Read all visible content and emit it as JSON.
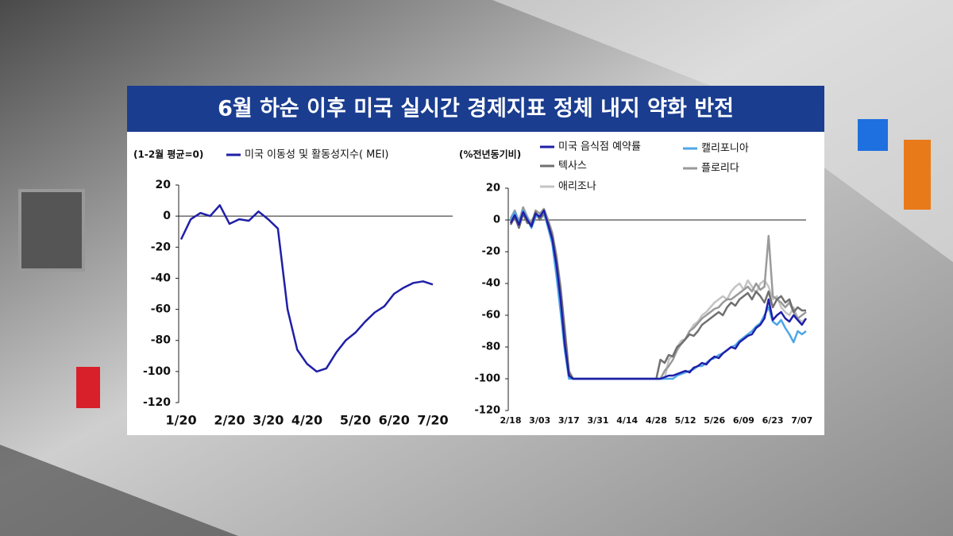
{
  "title": "6월 하순 이후 미국 실시간 경제지표 정체 내지 약화 반전",
  "chart_data": [
    {
      "type": "line",
      "y_label": "(1-2월 평균=0)",
      "categories": [
        "1/20",
        null,
        null,
        null,
        null,
        "2/20",
        null,
        null,
        null,
        "3/20",
        null,
        null,
        null,
        "4/20",
        null,
        null,
        null,
        null,
        "5/20",
        null,
        null,
        null,
        "6/20",
        null,
        null,
        null,
        "7/20"
      ],
      "series": [
        {
          "name": "미국 이동성 및 활동성지수( MEI)",
          "color": "#1f1fa8",
          "values": [
            -15,
            -2,
            2,
            0,
            7,
            -5,
            -2,
            -3,
            3,
            -2,
            -8,
            -60,
            -86,
            -95,
            -100,
            -98,
            -88,
            -80,
            -75,
            -68,
            -62,
            -58,
            -50,
            -46,
            -43,
            -42,
            -44
          ]
        }
      ],
      "ylim": [
        -120,
        20
      ],
      "yticks": [
        -120,
        -100,
        -80,
        -60,
        -40,
        -20,
        0,
        20
      ]
    },
    {
      "type": "line",
      "y_label": "(%전년동기비)",
      "categories": [
        "2/18",
        null,
        null,
        null,
        null,
        null,
        null,
        "3/03",
        null,
        null,
        null,
        null,
        null,
        null,
        "3/17",
        null,
        null,
        null,
        null,
        null,
        null,
        "3/31",
        null,
        null,
        null,
        null,
        null,
        null,
        "4/14",
        null,
        null,
        null,
        null,
        null,
        null,
        "4/28",
        null,
        null,
        null,
        null,
        null,
        null,
        "5/12",
        null,
        null,
        null,
        null,
        null,
        null,
        "5/26",
        null,
        null,
        null,
        null,
        null,
        null,
        "6/09",
        null,
        null,
        null,
        null,
        null,
        null,
        "6/23",
        null,
        null,
        null,
        null,
        null,
        null,
        "7/07",
        null
      ],
      "series": [
        {
          "name": "애리조나",
          "color": "#c4c4c4",
          "values": [
            -1,
            4,
            0,
            3,
            -1,
            0,
            3,
            1,
            3,
            -4,
            -12,
            -30,
            -48,
            -72,
            -97,
            -100,
            -100,
            -100,
            -100,
            -100,
            -100,
            -100,
            -100,
            -100,
            -100,
            -100,
            -100,
            -100,
            -100,
            -100,
            -100,
            -100,
            -100,
            -100,
            -100,
            -100,
            -100,
            -100,
            -88,
            -85,
            -80,
            -76,
            -75,
            -70,
            -66,
            -64,
            -60,
            -58,
            -55,
            -52,
            -50,
            -48,
            -50,
            -45,
            -42,
            -40,
            -44,
            -38,
            -42,
            -46,
            -40,
            -38,
            -42,
            -50,
            -48,
            -55,
            -58,
            -60,
            -55,
            -62,
            -64,
            -62
          ]
        },
        {
          "name": "플로리다",
          "color": "#9a9a9a",
          "values": [
            1,
            6,
            -1,
            8,
            2,
            -3,
            6,
            4,
            7,
            0,
            -8,
            -22,
            -42,
            -68,
            -95,
            -100,
            -100,
            -100,
            -100,
            -100,
            -100,
            -100,
            -100,
            -100,
            -100,
            -100,
            -100,
            -100,
            -100,
            -100,
            -100,
            -100,
            -100,
            -100,
            -100,
            -100,
            -100,
            -95,
            -92,
            -88,
            -82,
            -78,
            -75,
            -70,
            -68,
            -65,
            -62,
            -60,
            -58,
            -56,
            -55,
            -52,
            -50,
            -50,
            -48,
            -46,
            -44,
            -42,
            -45,
            -40,
            -44,
            -42,
            -10,
            -48,
            -50,
            -52,
            -55,
            -52,
            -58,
            -62,
            -60,
            -58
          ]
        },
        {
          "name": "텍사스",
          "color": "#707070",
          "values": [
            -3,
            2,
            -5,
            4,
            -2,
            -2,
            5,
            0,
            4,
            -2,
            -10,
            -25,
            -45,
            -70,
            -96,
            -100,
            -100,
            -100,
            -100,
            -100,
            -100,
            -100,
            -100,
            -100,
            -100,
            -100,
            -100,
            -100,
            -100,
            -100,
            -100,
            -100,
            -100,
            -100,
            -100,
            -100,
            -88,
            -90,
            -85,
            -86,
            -80,
            -78,
            -75,
            -72,
            -73,
            -70,
            -66,
            -64,
            -62,
            -60,
            -58,
            -60,
            -55,
            -52,
            -54,
            -50,
            -48,
            -46,
            -50,
            -45,
            -48,
            -52,
            -45,
            -55,
            -50,
            -48,
            -52,
            -50,
            -58,
            -55,
            -57,
            -57
          ]
        },
        {
          "name": "캘리포니아",
          "color": "#4da6e8",
          "values": [
            0,
            5,
            -2,
            6,
            1,
            -5,
            2,
            3,
            5,
            -5,
            -15,
            -35,
            -58,
            -82,
            -100,
            -100,
            -100,
            -100,
            -100,
            -100,
            -100,
            -100,
            -100,
            -100,
            -100,
            -100,
            -100,
            -100,
            -100,
            -100,
            -100,
            -100,
            -100,
            -100,
            -100,
            -100,
            -100,
            -100,
            -100,
            -100,
            -98,
            -97,
            -96,
            -95,
            -94,
            -92,
            -92,
            -90,
            -88,
            -87,
            -85,
            -84,
            -82,
            -80,
            -79,
            -76,
            -74,
            -72,
            -70,
            -67,
            -65,
            -60,
            -55,
            -64,
            -66,
            -63,
            -68,
            -72,
            -77,
            -70,
            -72,
            -70
          ]
        },
        {
          "name": "미국 음식점 예약률",
          "color": "#1f1fa8",
          "values": [
            -2,
            3,
            -3,
            5,
            0,
            -4,
            4,
            2,
            6,
            -3,
            -12,
            -28,
            -50,
            -78,
            -98,
            -100,
            -100,
            -100,
            -100,
            -100,
            -100,
            -100,
            -100,
            -100,
            -100,
            -100,
            -100,
            -100,
            -100,
            -100,
            -100,
            -100,
            -100,
            -100,
            -100,
            -100,
            -100,
            -99,
            -98,
            -98,
            -97,
            -96,
            -95,
            -96,
            -93,
            -92,
            -90,
            -91,
            -88,
            -86,
            -87,
            -84,
            -82,
            -80,
            -81,
            -77,
            -75,
            -73,
            -72,
            -68,
            -66,
            -62,
            -50,
            -63,
            -60,
            -58,
            -62,
            -64,
            -60,
            -63,
            -66,
            -62
          ]
        }
      ],
      "ylim": [
        -120,
        20
      ],
      "yticks": [
        -120,
        -100,
        -80,
        -60,
        -40,
        -20,
        0,
        20
      ]
    }
  ]
}
